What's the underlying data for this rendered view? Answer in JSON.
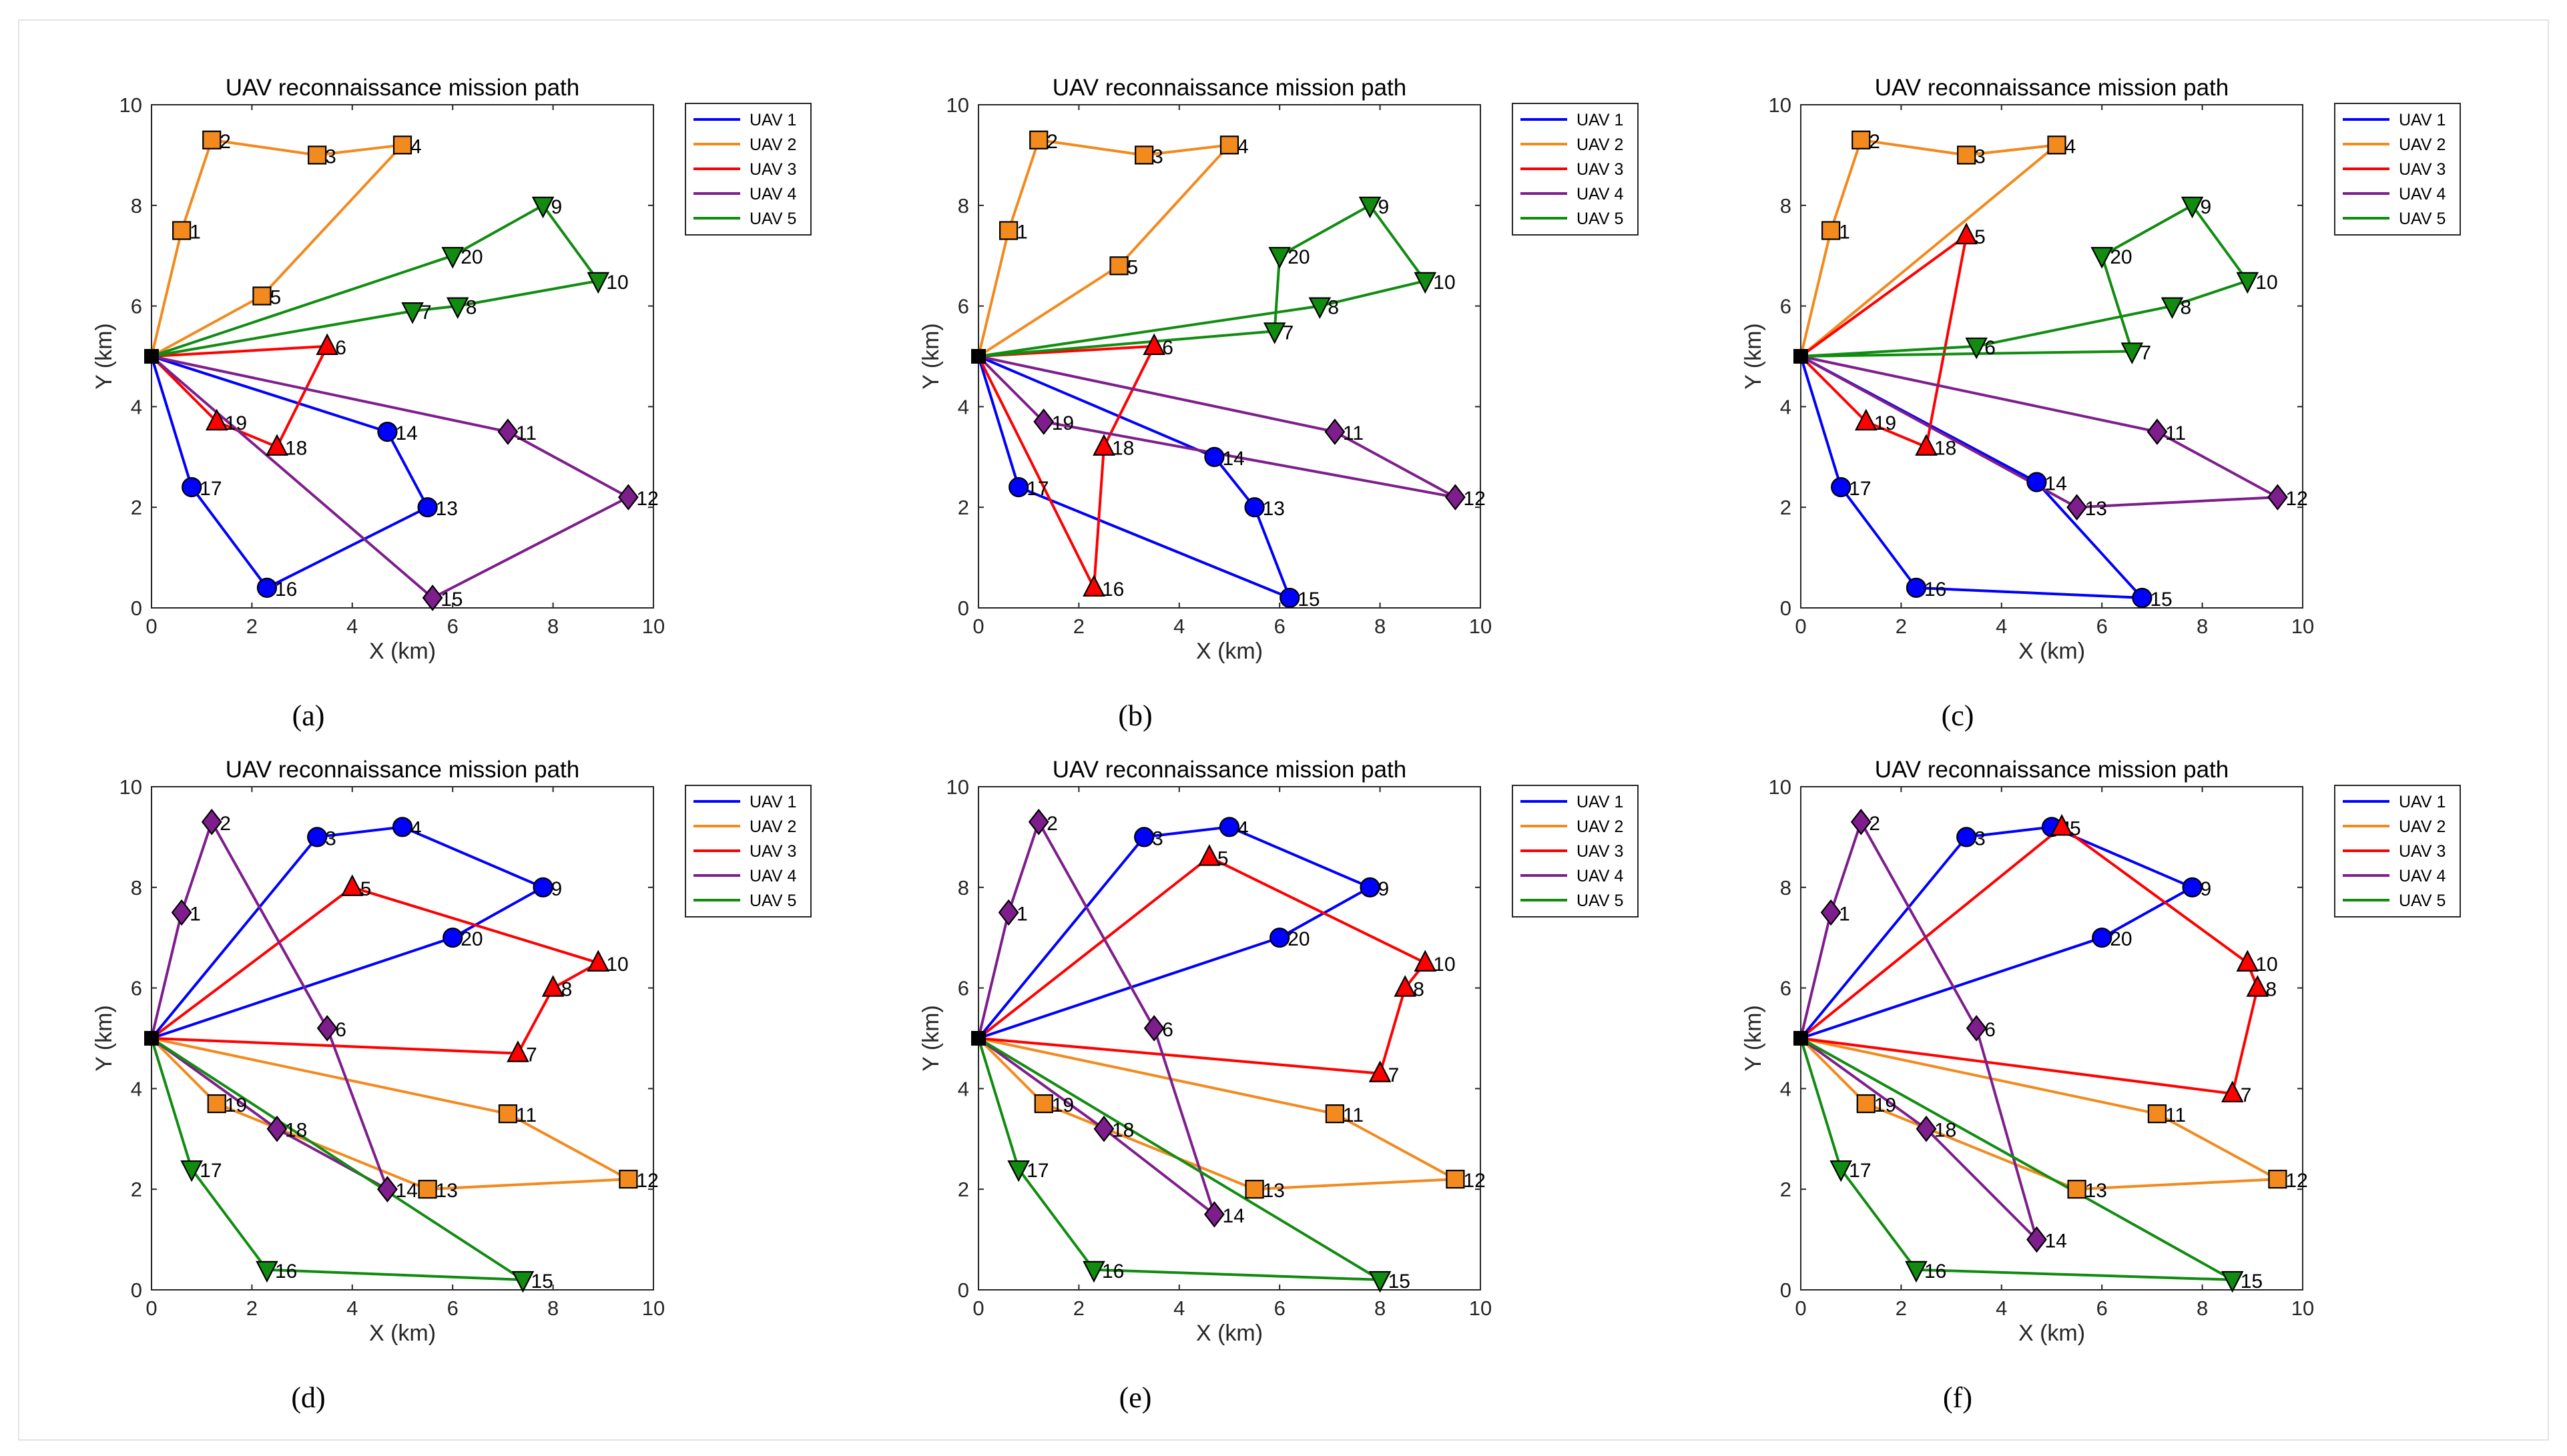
{
  "figure": {
    "panels": [
      "a",
      "b",
      "c",
      "d",
      "e",
      "f"
    ]
  },
  "chart_data": [
    {
      "type": "line",
      "panel_caption": "(a)",
      "title": "UAV reconnaissance mission path",
      "xlabel": "X (km)",
      "ylabel": "Y (km)",
      "xlim": [
        0,
        10
      ],
      "ylim": [
        0,
        10
      ],
      "xticks": [
        0,
        2,
        4,
        6,
        8,
        10
      ],
      "yticks": [
        0,
        2,
        4,
        6,
        8,
        10
      ],
      "grid": false,
      "legend_position": "top-right",
      "depot": {
        "x": 0,
        "y": 5
      },
      "series": [
        {
          "name": "UAV 1",
          "color": "#0000ff",
          "marker": "circle",
          "points": [
            {
              "id": 17,
              "x": 0.8,
              "y": 2.4
            },
            {
              "id": 16,
              "x": 2.3,
              "y": 0.4
            },
            {
              "id": 13,
              "x": 5.5,
              "y": 2.0
            },
            {
              "id": 14,
              "x": 4.7,
              "y": 3.5
            }
          ]
        },
        {
          "name": "UAV 2",
          "color": "#f28a1e",
          "marker": "square",
          "points": [
            {
              "id": 1,
              "x": 0.6,
              "y": 7.5
            },
            {
              "id": 2,
              "x": 1.2,
              "y": 9.3
            },
            {
              "id": 3,
              "x": 3.3,
              "y": 9.0
            },
            {
              "id": 4,
              "x": 5.0,
              "y": 9.2
            },
            {
              "id": 5,
              "x": 2.2,
              "y": 6.2
            }
          ]
        },
        {
          "name": "UAV 3",
          "color": "#ff0000",
          "marker": "triangle-up",
          "points": [
            {
              "id": 19,
              "x": 1.3,
              "y": 3.7
            },
            {
              "id": 18,
              "x": 2.5,
              "y": 3.2
            },
            {
              "id": 6,
              "x": 3.5,
              "y": 5.2
            }
          ]
        },
        {
          "name": "UAV 4",
          "color": "#7e1e8c",
          "marker": "diamond",
          "points": [
            {
              "id": 15,
              "x": 5.6,
              "y": 0.2
            },
            {
              "id": 12,
              "x": 9.5,
              "y": 2.2
            },
            {
              "id": 11,
              "x": 7.1,
              "y": 3.5
            }
          ]
        },
        {
          "name": "UAV 5",
          "color": "#118c11",
          "marker": "triangle-down",
          "points": [
            {
              "id": 7,
              "x": 5.2,
              "y": 5.9
            },
            {
              "id": 8,
              "x": 6.1,
              "y": 6.0
            },
            {
              "id": 10,
              "x": 8.9,
              "y": 6.5
            },
            {
              "id": 9,
              "x": 7.8,
              "y": 8.0
            },
            {
              "id": 20,
              "x": 6.0,
              "y": 7.0
            }
          ]
        }
      ]
    },
    {
      "type": "line",
      "panel_caption": "(b)",
      "title": "UAV reconnaissance mission path",
      "xlabel": "X (km)",
      "ylabel": "Y (km)",
      "xlim": [
        0,
        10
      ],
      "ylim": [
        0,
        10
      ],
      "xticks": [
        0,
        2,
        4,
        6,
        8,
        10
      ],
      "yticks": [
        0,
        2,
        4,
        6,
        8,
        10
      ],
      "grid": false,
      "legend_position": "top-right",
      "depot": {
        "x": 0,
        "y": 5
      },
      "series": [
        {
          "name": "UAV 1",
          "color": "#0000ff",
          "marker": "circle",
          "points": [
            {
              "id": 17,
              "x": 0.8,
              "y": 2.4
            },
            {
              "id": 15,
              "x": 6.2,
              "y": 0.2
            },
            {
              "id": 13,
              "x": 5.5,
              "y": 2.0
            },
            {
              "id": 14,
              "x": 4.7,
              "y": 3.0
            }
          ]
        },
        {
          "name": "UAV 2",
          "color": "#f28a1e",
          "marker": "square",
          "points": [
            {
              "id": 1,
              "x": 0.6,
              "y": 7.5
            },
            {
              "id": 2,
              "x": 1.2,
              "y": 9.3
            },
            {
              "id": 3,
              "x": 3.3,
              "y": 9.0
            },
            {
              "id": 4,
              "x": 5.0,
              "y": 9.2
            },
            {
              "id": 5,
              "x": 2.8,
              "y": 6.8
            }
          ]
        },
        {
          "name": "UAV 3",
          "color": "#ff0000",
          "marker": "triangle-up",
          "points": [
            {
              "id": 16,
              "x": 2.3,
              "y": 0.4
            },
            {
              "id": 18,
              "x": 2.5,
              "y": 3.2
            },
            {
              "id": 6,
              "x": 3.5,
              "y": 5.2
            }
          ]
        },
        {
          "name": "UAV 4",
          "color": "#7e1e8c",
          "marker": "diamond",
          "points": [
            {
              "id": 19,
              "x": 1.3,
              "y": 3.7
            },
            {
              "id": 12,
              "x": 9.5,
              "y": 2.2
            },
            {
              "id": 11,
              "x": 7.1,
              "y": 3.5
            }
          ]
        },
        {
          "name": "UAV 5",
          "color": "#118c11",
          "marker": "triangle-down",
          "points": [
            {
              "id": 7,
              "x": 5.9,
              "y": 5.5
            },
            {
              "id": 20,
              "x": 6.0,
              "y": 7.0
            },
            {
              "id": 9,
              "x": 7.8,
              "y": 8.0
            },
            {
              "id": 10,
              "x": 8.9,
              "y": 6.5
            },
            {
              "id": 8,
              "x": 6.8,
              "y": 6.0
            }
          ]
        }
      ]
    },
    {
      "type": "line",
      "panel_caption": "(c)",
      "title": "UAV reconnaissance mission path",
      "xlabel": "X (km)",
      "ylabel": "Y (km)",
      "xlim": [
        0,
        10
      ],
      "ylim": [
        0,
        10
      ],
      "xticks": [
        0,
        2,
        4,
        6,
        8,
        10
      ],
      "yticks": [
        0,
        2,
        4,
        6,
        8,
        10
      ],
      "grid": false,
      "legend_position": "top-right",
      "depot": {
        "x": 0,
        "y": 5
      },
      "series": [
        {
          "name": "UAV 1",
          "color": "#0000ff",
          "marker": "circle",
          "points": [
            {
              "id": 17,
              "x": 0.8,
              "y": 2.4
            },
            {
              "id": 16,
              "x": 2.3,
              "y": 0.4
            },
            {
              "id": 15,
              "x": 6.8,
              "y": 0.2
            },
            {
              "id": 14,
              "x": 4.7,
              "y": 2.5
            }
          ]
        },
        {
          "name": "UAV 2",
          "color": "#f28a1e",
          "marker": "square",
          "points": [
            {
              "id": 1,
              "x": 0.6,
              "y": 7.5
            },
            {
              "id": 2,
              "x": 1.2,
              "y": 9.3
            },
            {
              "id": 3,
              "x": 3.3,
              "y": 9.0
            },
            {
              "id": 4,
              "x": 5.1,
              "y": 9.2
            }
          ]
        },
        {
          "name": "UAV 3",
          "color": "#ff0000",
          "marker": "triangle-up",
          "points": [
            {
              "id": 19,
              "x": 1.3,
              "y": 3.7
            },
            {
              "id": 18,
              "x": 2.5,
              "y": 3.2
            },
            {
              "id": 5,
              "x": 3.3,
              "y": 7.4
            }
          ]
        },
        {
          "name": "UAV 4",
          "color": "#7e1e8c",
          "marker": "diamond",
          "points": [
            {
              "id": 13,
              "x": 5.5,
              "y": 2.0
            },
            {
              "id": 12,
              "x": 9.5,
              "y": 2.2
            },
            {
              "id": 11,
              "x": 7.1,
              "y": 3.5
            }
          ]
        },
        {
          "name": "UAV 5",
          "color": "#118c11",
          "marker": "triangle-down",
          "points": [
            {
              "id": 7,
              "x": 6.6,
              "y": 5.1
            },
            {
              "id": 20,
              "x": 6.0,
              "y": 7.0
            },
            {
              "id": 9,
              "x": 7.8,
              "y": 8.0
            },
            {
              "id": 10,
              "x": 8.9,
              "y": 6.5
            },
            {
              "id": 8,
              "x": 7.4,
              "y": 6.0
            },
            {
              "id": 6,
              "x": 3.5,
              "y": 5.2
            }
          ]
        }
      ]
    },
    {
      "type": "line",
      "panel_caption": "(d)",
      "title": "UAV reconnaissance mission path",
      "xlabel": "X (km)",
      "ylabel": "Y (km)",
      "xlim": [
        0,
        10
      ],
      "ylim": [
        0,
        10
      ],
      "xticks": [
        0,
        2,
        4,
        6,
        8,
        10
      ],
      "yticks": [
        0,
        2,
        4,
        6,
        8,
        10
      ],
      "grid": false,
      "legend_position": "top-right",
      "depot": {
        "x": 0,
        "y": 5
      },
      "series": [
        {
          "name": "UAV 1",
          "color": "#0000ff",
          "marker": "circle",
          "points": [
            {
              "id": 3,
              "x": 3.3,
              "y": 9.0
            },
            {
              "id": 4,
              "x": 5.0,
              "y": 9.2
            },
            {
              "id": 9,
              "x": 7.8,
              "y": 8.0
            },
            {
              "id": 20,
              "x": 6.0,
              "y": 7.0
            }
          ]
        },
        {
          "name": "UAV 2",
          "color": "#f28a1e",
          "marker": "square",
          "points": [
            {
              "id": 19,
              "x": 1.3,
              "y": 3.7
            },
            {
              "id": 13,
              "x": 5.5,
              "y": 2.0
            },
            {
              "id": 12,
              "x": 9.5,
              "y": 2.2
            },
            {
              "id": 11,
              "x": 7.1,
              "y": 3.5
            }
          ]
        },
        {
          "name": "UAV 3",
          "color": "#ff0000",
          "marker": "triangle-up",
          "points": [
            {
              "id": 5,
              "x": 4.0,
              "y": 8.0
            },
            {
              "id": 10,
              "x": 8.9,
              "y": 6.5
            },
            {
              "id": 8,
              "x": 8.0,
              "y": 6.0
            },
            {
              "id": 7,
              "x": 7.3,
              "y": 4.7
            }
          ]
        },
        {
          "name": "UAV 4",
          "color": "#7e1e8c",
          "marker": "diamond",
          "points": [
            {
              "id": 18,
              "x": 2.5,
              "y": 3.2
            },
            {
              "id": 14,
              "x": 4.7,
              "y": 2.0
            },
            {
              "id": 6,
              "x": 3.5,
              "y": 5.2
            },
            {
              "id": 2,
              "x": 1.2,
              "y": 9.3
            },
            {
              "id": 1,
              "x": 0.6,
              "y": 7.5
            }
          ]
        },
        {
          "name": "UAV 5",
          "color": "#118c11",
          "marker": "triangle-down",
          "points": [
            {
              "id": 17,
              "x": 0.8,
              "y": 2.4
            },
            {
              "id": 16,
              "x": 2.3,
              "y": 0.4
            },
            {
              "id": 15,
              "x": 7.4,
              "y": 0.2
            }
          ]
        }
      ]
    },
    {
      "type": "line",
      "panel_caption": "(e)",
      "title": "UAV reconnaissance mission path",
      "xlabel": "X (km)",
      "ylabel": "Y (km)",
      "xlim": [
        0,
        10
      ],
      "ylim": [
        0,
        10
      ],
      "xticks": [
        0,
        2,
        4,
        6,
        8,
        10
      ],
      "yticks": [
        0,
        2,
        4,
        6,
        8,
        10
      ],
      "grid": false,
      "legend_position": "top-right",
      "depot": {
        "x": 0,
        "y": 5
      },
      "series": [
        {
          "name": "UAV 1",
          "color": "#0000ff",
          "marker": "circle",
          "points": [
            {
              "id": 3,
              "x": 3.3,
              "y": 9.0
            },
            {
              "id": 4,
              "x": 5.0,
              "y": 9.2
            },
            {
              "id": 9,
              "x": 7.8,
              "y": 8.0
            },
            {
              "id": 20,
              "x": 6.0,
              "y": 7.0
            }
          ]
        },
        {
          "name": "UAV 2",
          "color": "#f28a1e",
          "marker": "square",
          "points": [
            {
              "id": 19,
              "x": 1.3,
              "y": 3.7
            },
            {
              "id": 13,
              "x": 5.5,
              "y": 2.0
            },
            {
              "id": 12,
              "x": 9.5,
              "y": 2.2
            },
            {
              "id": 11,
              "x": 7.1,
              "y": 3.5
            }
          ]
        },
        {
          "name": "UAV 3",
          "color": "#ff0000",
          "marker": "triangle-up",
          "points": [
            {
              "id": 5,
              "x": 4.6,
              "y": 8.6
            },
            {
              "id": 10,
              "x": 8.9,
              "y": 6.5
            },
            {
              "id": 8,
              "x": 8.5,
              "y": 6.0
            },
            {
              "id": 7,
              "x": 8.0,
              "y": 4.3
            }
          ]
        },
        {
          "name": "UAV 4",
          "color": "#7e1e8c",
          "marker": "diamond",
          "points": [
            {
              "id": 18,
              "x": 2.5,
              "y": 3.2
            },
            {
              "id": 14,
              "x": 4.7,
              "y": 1.5
            },
            {
              "id": 6,
              "x": 3.5,
              "y": 5.2
            },
            {
              "id": 2,
              "x": 1.2,
              "y": 9.3
            },
            {
              "id": 1,
              "x": 0.6,
              "y": 7.5
            }
          ]
        },
        {
          "name": "UAV 5",
          "color": "#118c11",
          "marker": "triangle-down",
          "points": [
            {
              "id": 17,
              "x": 0.8,
              "y": 2.4
            },
            {
              "id": 16,
              "x": 2.3,
              "y": 0.4
            },
            {
              "id": 15,
              "x": 8.0,
              "y": 0.2
            }
          ]
        }
      ]
    },
    {
      "type": "line",
      "panel_caption": "(f)",
      "title": "UAV reconnaissance mission path",
      "xlabel": "X (km)",
      "ylabel": "Y (km)",
      "xlim": [
        0,
        10
      ],
      "ylim": [
        0,
        10
      ],
      "xticks": [
        0,
        2,
        4,
        6,
        8,
        10
      ],
      "yticks": [
        0,
        2,
        4,
        6,
        8,
        10
      ],
      "grid": false,
      "legend_position": "top-right",
      "depot": {
        "x": 0,
        "y": 5
      },
      "series": [
        {
          "name": "UAV 1",
          "color": "#0000ff",
          "marker": "circle",
          "points": [
            {
              "id": 3,
              "x": 3.3,
              "y": 9.0
            },
            {
              "id": 4,
              "x": 5.0,
              "y": 9.2
            },
            {
              "id": 9,
              "x": 7.8,
              "y": 8.0
            },
            {
              "id": 20,
              "x": 6.0,
              "y": 7.0
            }
          ]
        },
        {
          "name": "UAV 2",
          "color": "#f28a1e",
          "marker": "square",
          "points": [
            {
              "id": 19,
              "x": 1.3,
              "y": 3.7
            },
            {
              "id": 13,
              "x": 5.5,
              "y": 2.0
            },
            {
              "id": 12,
              "x": 9.5,
              "y": 2.2
            },
            {
              "id": 11,
              "x": 7.1,
              "y": 3.5
            }
          ]
        },
        {
          "name": "UAV 3",
          "color": "#ff0000",
          "marker": "triangle-up",
          "points": [
            {
              "id": 5,
              "x": 5.2,
              "y": 9.2
            },
            {
              "id": 10,
              "x": 8.9,
              "y": 6.5
            },
            {
              "id": 8,
              "x": 9.1,
              "y": 6.0
            },
            {
              "id": 7,
              "x": 8.6,
              "y": 3.9
            }
          ]
        },
        {
          "name": "UAV 4",
          "color": "#7e1e8c",
          "marker": "diamond",
          "points": [
            {
              "id": 18,
              "x": 2.5,
              "y": 3.2
            },
            {
              "id": 14,
              "x": 4.7,
              "y": 1.0
            },
            {
              "id": 6,
              "x": 3.5,
              "y": 5.2
            },
            {
              "id": 2,
              "x": 1.2,
              "y": 9.3
            },
            {
              "id": 1,
              "x": 0.6,
              "y": 7.5
            }
          ]
        },
        {
          "name": "UAV 5",
          "color": "#118c11",
          "marker": "triangle-down",
          "points": [
            {
              "id": 17,
              "x": 0.8,
              "y": 2.4
            },
            {
              "id": 16,
              "x": 2.3,
              "y": 0.4
            },
            {
              "id": 15,
              "x": 8.6,
              "y": 0.2
            }
          ]
        }
      ]
    }
  ]
}
